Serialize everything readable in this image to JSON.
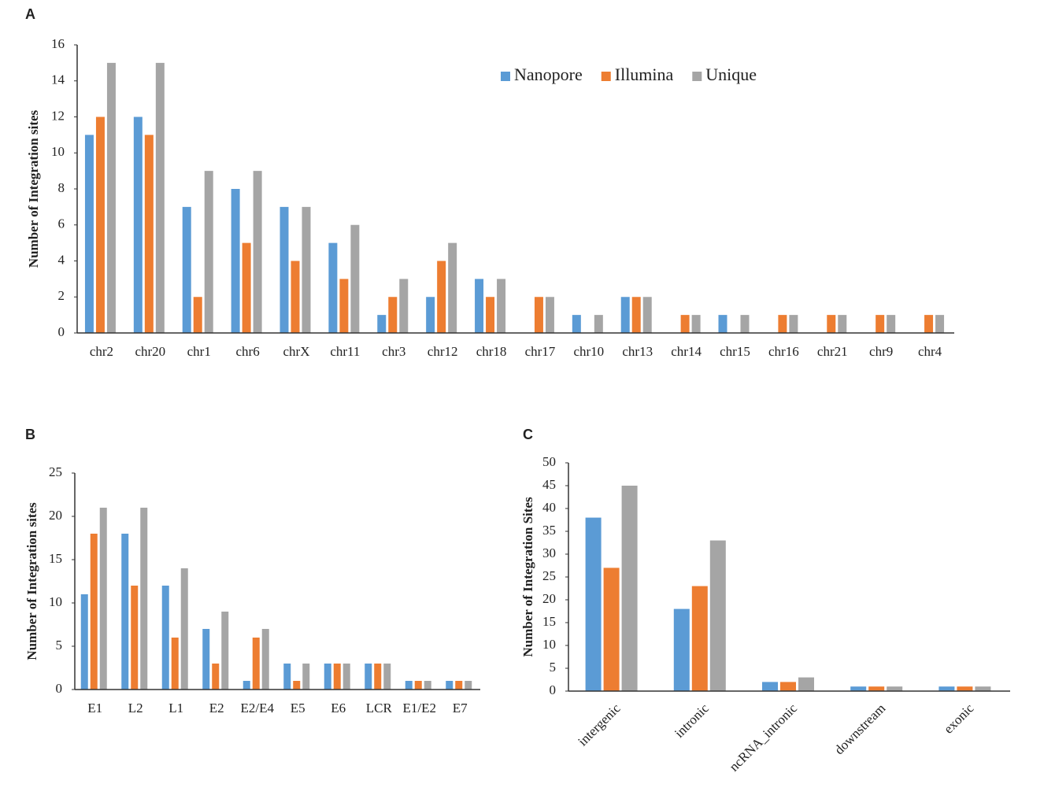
{
  "chart_data": [
    {
      "type": "bar",
      "panel": "A",
      "y_label": "Number of Integration sites",
      "legend": "top-right",
      "categories": [
        "chr2",
        "chr20",
        "chr1",
        "chr6",
        "chrX",
        "chr11",
        "chr3",
        "chr12",
        "chr18",
        "chr17",
        "chr10",
        "chr13",
        "chr14",
        "chr15",
        "chr16",
        "chr21",
        "chr9",
        "chr4"
      ],
      "series": [
        {
          "name": "Nanopore",
          "color": "#5b9bd5",
          "values": [
            11,
            12,
            7,
            8,
            7,
            5,
            1,
            2,
            3,
            0,
            1,
            2,
            0,
            1,
            0,
            0,
            0,
            0
          ]
        },
        {
          "name": "Illumina",
          "color": "#ed7d31",
          "values": [
            12,
            11,
            2,
            5,
            4,
            3,
            2,
            4,
            2,
            2,
            0,
            2,
            1,
            0,
            1,
            1,
            1,
            1
          ]
        },
        {
          "name": "Unique",
          "color": "#a5a5a5",
          "values": [
            15,
            15,
            9,
            9,
            7,
            6,
            3,
            5,
            3,
            2,
            1,
            2,
            1,
            1,
            1,
            1,
            1,
            1
          ]
        }
      ],
      "ylim": [
        0,
        16
      ],
      "yticks": [
        0,
        2,
        4,
        6,
        8,
        10,
        12,
        14,
        16
      ]
    },
    {
      "type": "bar",
      "panel": "B",
      "y_label": "Number of Integration sites",
      "categories": [
        "E1",
        "L2",
        "L1",
        "E2",
        "E2/E4",
        "E5",
        "E6",
        "LCR",
        "E1/E2",
        "E7"
      ],
      "series": [
        {
          "color": "#5b9bd5",
          "values": [
            11,
            18,
            12,
            7,
            1,
            3,
            3,
            3,
            1,
            1
          ]
        },
        {
          "color": "#ed7d31",
          "values": [
            18,
            12,
            6,
            3,
            6,
            1,
            3,
            3,
            1,
            1
          ]
        },
        {
          "color": "#a5a5a5",
          "values": [
            21,
            21,
            14,
            9,
            7,
            3,
            3,
            3,
            1,
            1
          ]
        }
      ],
      "ylim": [
        0,
        25
      ],
      "yticks": [
        0,
        5,
        10,
        15,
        20,
        25
      ]
    },
    {
      "type": "bar",
      "panel": "C",
      "y_label": "Number of Integration Sites",
      "categories": [
        "intergenic",
        "intronic",
        "ncRNA_intronic",
        "downstream",
        "exonic"
      ],
      "series": [
        {
          "color": "#5b9bd5",
          "values": [
            38,
            18,
            2,
            1,
            1
          ]
        },
        {
          "color": "#ed7d31",
          "values": [
            27,
            23,
            2,
            1,
            1
          ]
        },
        {
          "color": "#a5a5a5",
          "values": [
            45,
            33,
            3,
            1,
            1
          ]
        }
      ],
      "ylim": [
        0,
        50
      ],
      "yticks": [
        0,
        5,
        10,
        15,
        20,
        25,
        30,
        35,
        40,
        45,
        50
      ]
    }
  ]
}
